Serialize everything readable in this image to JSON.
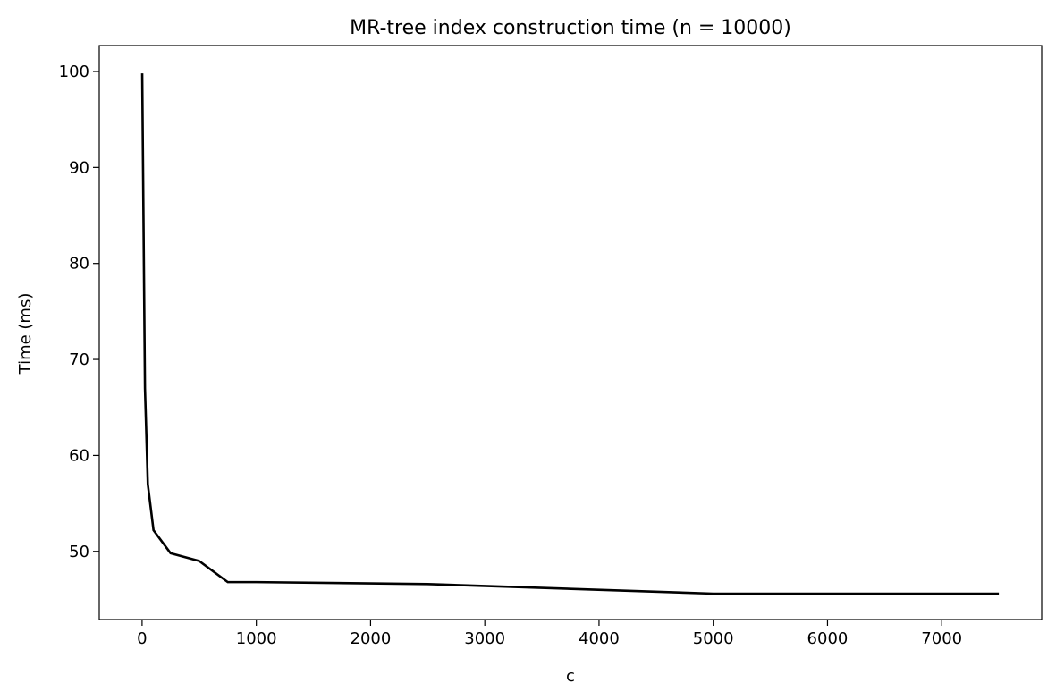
{
  "chart_data": {
    "type": "line",
    "title": "MR-tree index construction time (n = 10000)",
    "xlabel": "c",
    "ylabel": "Time (ms)",
    "xlim": [
      -375,
      7875
    ],
    "ylim": [
      42.9,
      102.7
    ],
    "xticks": [
      0,
      1000,
      2000,
      3000,
      4000,
      5000,
      6000,
      7000
    ],
    "yticks": [
      50,
      60,
      70,
      80,
      90,
      100
    ],
    "grid": false,
    "legend": "none",
    "series": [
      {
        "color": "#000000",
        "x": [
          1,
          25,
          50,
          100,
          250,
          500,
          750,
          1000,
          2500,
          5000,
          7500
        ],
        "y": [
          99.8,
          67.0,
          57.0,
          52.2,
          49.8,
          49.0,
          46.8,
          46.8,
          46.6,
          45.6,
          45.6
        ]
      }
    ]
  }
}
